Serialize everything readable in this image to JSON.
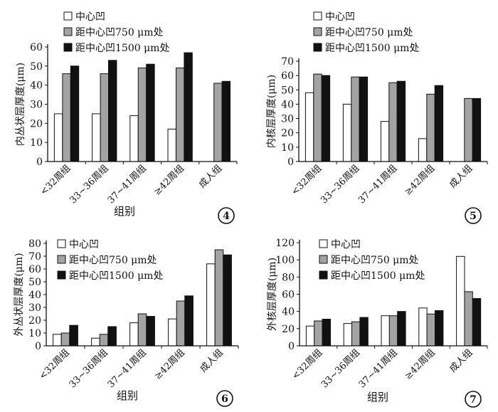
{
  "chart_data": [
    {
      "panel_number": "4",
      "type": "bar",
      "ylabel": "内丛状层厚度(μm)",
      "xlabel": "组别",
      "ylim": [
        0,
        60
      ],
      "yticks": [
        0,
        10,
        20,
        30,
        40,
        50,
        60
      ],
      "categories": [
        "<32周组",
        "33~36周组",
        "37~41周组",
        "≥42周组",
        "成人组"
      ],
      "legend_position": "top-left",
      "series": [
        {
          "name": "中心凹",
          "color": "#ffffff",
          "values": [
            25,
            25,
            24,
            17,
            null
          ]
        },
        {
          "name": "距中心凹750 μm处",
          "color": "#a3a3a3",
          "values": [
            46,
            46,
            49,
            49,
            41
          ]
        },
        {
          "name": "距中心凹1500 μm处",
          "color": "#111111",
          "values": [
            50,
            53,
            51,
            57,
            42
          ]
        }
      ]
    },
    {
      "panel_number": "5",
      "type": "bar",
      "ylabel": "内核层厚度(μm)",
      "xlabel": "",
      "ylim": [
        0,
        70
      ],
      "yticks": [
        0,
        10,
        20,
        30,
        40,
        50,
        60,
        70
      ],
      "categories": [
        "<32周组",
        "33~36周组",
        "37~41周组",
        "≥42周组",
        "成人组"
      ],
      "legend_position": "top-left",
      "series": [
        {
          "name": "中心凹",
          "color": "#ffffff",
          "values": [
            48,
            40,
            28,
            16,
            null
          ]
        },
        {
          "name": "距中心凹750 μm处",
          "color": "#a3a3a3",
          "values": [
            61,
            59,
            55,
            47,
            44
          ]
        },
        {
          "name": "距中心凹1500 μm处",
          "color": "#111111",
          "values": [
            60,
            59,
            56,
            53,
            44
          ]
        }
      ]
    },
    {
      "panel_number": "6",
      "type": "bar",
      "ylabel": "外丛状层厚度(μm)",
      "xlabel": "组别",
      "ylim": [
        0,
        80
      ],
      "yticks": [
        0,
        10,
        20,
        30,
        40,
        50,
        60,
        70,
        80
      ],
      "categories": [
        "<32周组",
        "33~36周组",
        "37~41周组",
        "≥42周组",
        "成人组"
      ],
      "legend_position": "top-left",
      "series": [
        {
          "name": "中心凹",
          "color": "#ffffff",
          "values": [
            9,
            6,
            18,
            21,
            64
          ]
        },
        {
          "name": "距中心凹750 μm处",
          "color": "#a3a3a3",
          "values": [
            10,
            9,
            25,
            35,
            75
          ]
        },
        {
          "name": "距中心凹1500 μm处",
          "color": "#111111",
          "values": [
            16,
            15,
            23,
            39,
            71
          ]
        }
      ]
    },
    {
      "panel_number": "7",
      "type": "bar",
      "ylabel": "外核层厚度(μm)",
      "xlabel": "组别",
      "ylim": [
        0,
        120
      ],
      "yticks": [
        0,
        20,
        40,
        60,
        80,
        100,
        120
      ],
      "categories": [
        "<32周组",
        "33~36周组",
        "37~41周组",
        "≥42周组",
        "成人组"
      ],
      "legend_position": "top-left",
      "series": [
        {
          "name": "中心凹",
          "color": "#ffffff",
          "values": [
            23,
            26,
            35,
            44,
            104
          ]
        },
        {
          "name": "距中心凹750 μm处",
          "color": "#a3a3a3",
          "values": [
            29,
            28,
            35,
            37,
            63
          ]
        },
        {
          "name": "距中心凹1500 μm处",
          "color": "#111111",
          "values": [
            31,
            33,
            40,
            41,
            55
          ]
        }
      ]
    }
  ]
}
